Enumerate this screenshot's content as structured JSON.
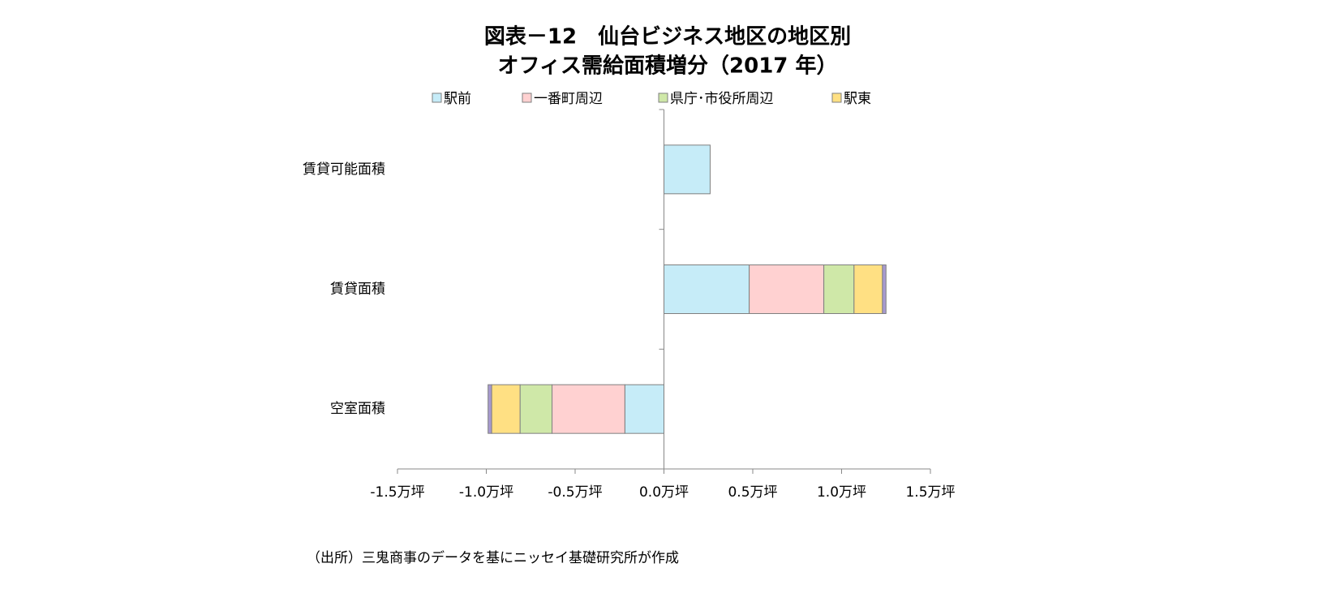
{
  "chart_data": {
    "type": "stacked-barh",
    "title": [
      "図表－12　仙台ビジネス地区の地区別",
      "オフィス需給面積増分（2017 年）"
    ],
    "categories": [
      "賃貸可能面積",
      "賃貸面積",
      "空室面積"
    ],
    "series": [
      {
        "name": "駅前",
        "color": "#c6ecf8",
        "values": [
          0.26,
          0.48,
          -0.22
        ]
      },
      {
        "name": "一番町周辺",
        "color": "#ffd1d1",
        "values": [
          0,
          0.42,
          -0.41
        ]
      },
      {
        "name": "県庁･市役所周辺",
        "color": "#cfe8a8",
        "values": [
          0,
          0.17,
          -0.18
        ]
      },
      {
        "name": "駅東",
        "color": "#ffe083",
        "values": [
          0,
          0.16,
          -0.16
        ]
      },
      {
        "name": null,
        "color": "#a79ad0",
        "values": [
          0,
          0.02,
          -0.02
        ]
      }
    ],
    "xlim": [
      -1.5,
      1.5
    ],
    "xticks": [
      {
        "value": -1.5,
        "label": "-1.5万坪"
      },
      {
        "value": -1.0,
        "label": "-1.0万坪"
      },
      {
        "value": -0.5,
        "label": "-0.5万坪"
      },
      {
        "value": 0,
        "label": "0.0万坪"
      },
      {
        "value": 0.5,
        "label": "0.5万坪"
      },
      {
        "value": 1.0,
        "label": "1.0万坪"
      },
      {
        "value": 1.5,
        "label": "1.5万坪"
      }
    ],
    "legend": "top",
    "note": "（出所）三鬼商事のデータを基にニッセイ基礎研究所が作成"
  }
}
